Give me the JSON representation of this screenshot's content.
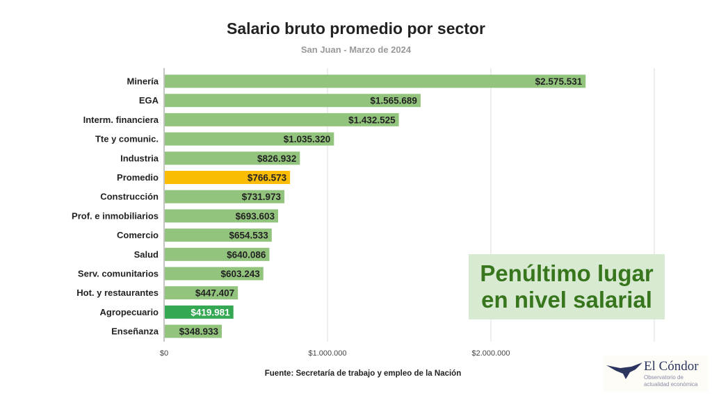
{
  "chart_data": {
    "type": "bar",
    "orientation": "horizontal",
    "title": "Salario bruto promedio por sector",
    "subtitle": "San Juan - Marzo de 2024",
    "source": "Fuente: Secretaría de trabajo y empleo de la Nación",
    "categories": [
      "Minería",
      "EGA",
      "Interm. financiera",
      "Tte y comunic.",
      "Industria",
      "Promedio",
      "Construcción",
      "Prof. e inmobiliarios",
      "Comercio",
      "Salud",
      "Serv. comunitarios",
      "Hot. y restaurantes",
      "Agropecuario",
      "Enseñanza"
    ],
    "values": [
      2575531,
      1565689,
      1432525,
      1035320,
      826932,
      766573,
      731973,
      693603,
      654533,
      640086,
      603243,
      447407,
      419981,
      348933
    ],
    "labels": [
      "$2.575.531",
      "$1.565.689",
      "$1.432.525",
      "$1.035.320",
      "$826.932",
      "$766.573",
      "$731.973",
      "$693.603",
      "$654.533",
      "$640.086",
      "$603.243",
      "$447.407",
      "$419.981",
      "$348.933"
    ],
    "colors": [
      "#93c47d",
      "#93c47d",
      "#93c47d",
      "#93c47d",
      "#93c47d",
      "#fbbc04",
      "#93c47d",
      "#93c47d",
      "#93c47d",
      "#93c47d",
      "#93c47d",
      "#93c47d",
      "#34a853",
      "#93c47d"
    ],
    "label_colors": [
      "#222",
      "#222",
      "#222",
      "#222",
      "#222",
      "#222",
      "#222",
      "#222",
      "#222",
      "#222",
      "#222",
      "#222",
      "#ffffff",
      "#222"
    ],
    "xlim": [
      0,
      3000000
    ],
    "xticks": [
      0,
      1000000,
      2000000,
      3000000
    ],
    "xtick_labels": [
      "$0",
      "$1.000.000",
      "$2.000.000",
      ""
    ],
    "grid": true
  },
  "callout": {
    "line1": "Penúltimo lugar",
    "line2": "en nivel salarial"
  },
  "logo": {
    "name": "El Cóndor",
    "tagline": "Observatorio de actualidad económica"
  }
}
